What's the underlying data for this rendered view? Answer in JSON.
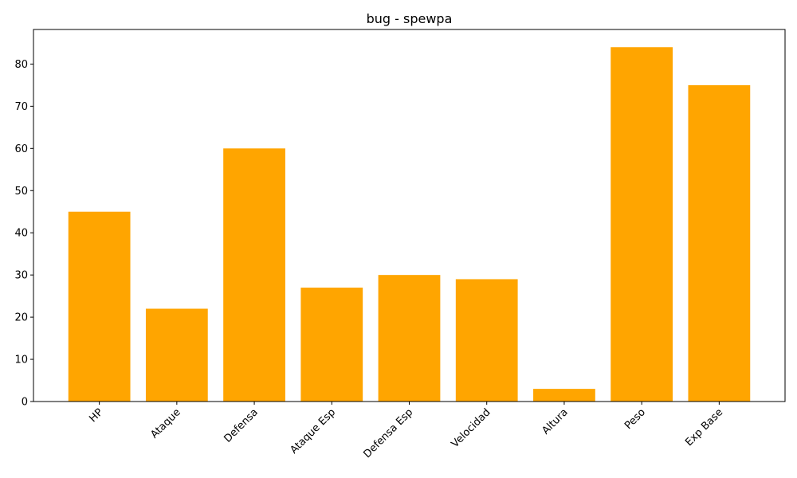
{
  "chart_data": {
    "type": "bar",
    "title": "bug - spewpa",
    "xlabel": "",
    "ylabel": "",
    "categories": [
      "HP",
      "Ataque",
      "Defensa",
      "Ataque Esp",
      "Defensa Esp",
      "Velocidad",
      "Altura",
      "Peso",
      "Exp Base"
    ],
    "values": [
      45,
      22,
      60,
      27,
      30,
      29,
      3,
      84,
      75
    ],
    "ylim": [
      0,
      88.2
    ],
    "yticks": [
      0,
      10,
      20,
      30,
      40,
      50,
      60,
      70,
      80
    ],
    "bar_color": "#ffa500",
    "grid": false,
    "legend": "none",
    "x_tick_rotation_deg": 45
  }
}
